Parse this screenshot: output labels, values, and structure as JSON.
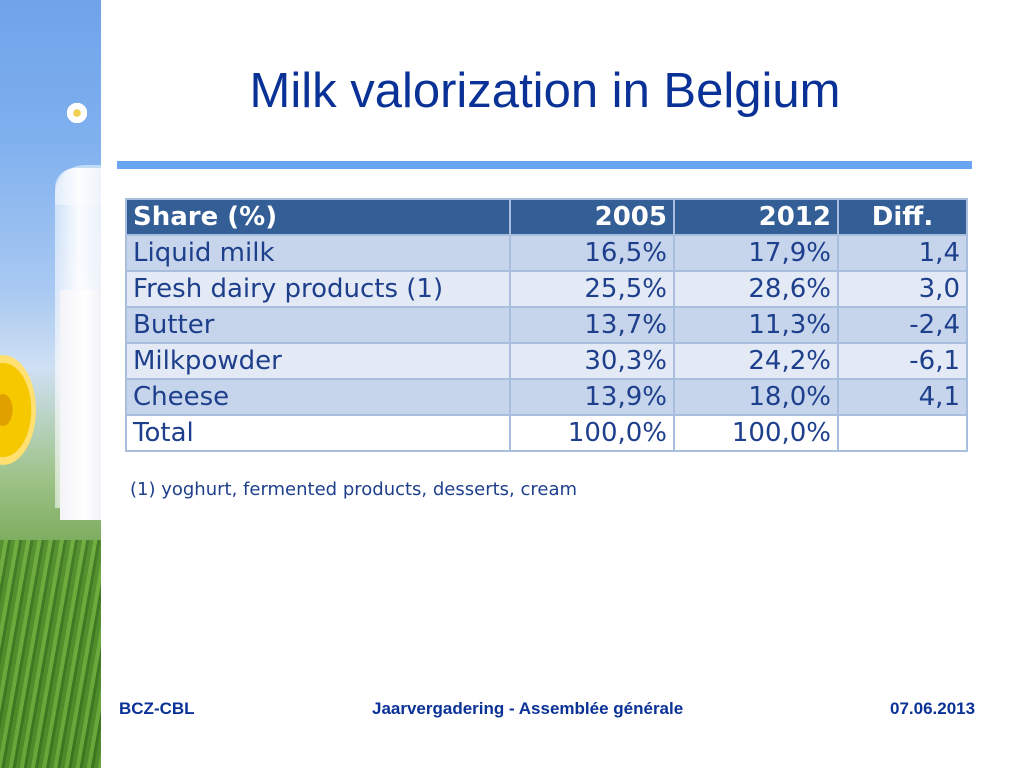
{
  "slide": {
    "title": "Milk valorization in Belgium",
    "accent_color": "#0a3296",
    "rule_color": "#6aa5f2"
  },
  "table": {
    "headers": [
      "Share (%)",
      "2005",
      "2012",
      "Diff."
    ],
    "rows": [
      [
        "Liquid milk",
        "16,5%",
        "17,9%",
        "1,4"
      ],
      [
        "Fresh dairy products (1)",
        "25,5%",
        "28,6%",
        "3,0"
      ],
      [
        "Butter",
        "13,7%",
        "11,3%",
        "-2,4"
      ],
      [
        "Milkpowder",
        "30,3%",
        "24,2%",
        "-6,1"
      ],
      [
        "Cheese",
        "13,9%",
        "18,0%",
        "4,1"
      ],
      [
        "Total",
        "100,0%",
        "100,0%",
        ""
      ]
    ],
    "header_color": "#335e96"
  },
  "footnote": "(1) yoghurt, fermented products, desserts, cream",
  "footer": {
    "left": "BCZ-CBL",
    "center": "Jaarvergadering  -  Assemblée générale",
    "right": "07.06.2013"
  }
}
